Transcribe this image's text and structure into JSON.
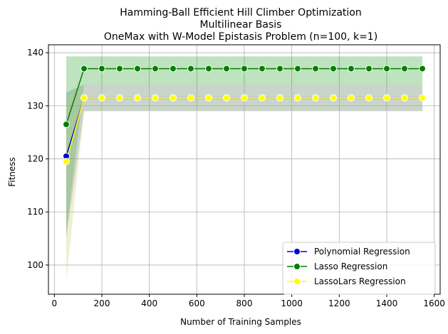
{
  "chart_data": {
    "type": "line",
    "title": [
      "Hamming-Ball Efficient Hill Climber Optimization",
      "Multilinear Basis",
      "OneMax with W-Model Epistasis Problem (n=100, k=1)"
    ],
    "xlabel": "Number of Training Samples",
    "ylabel": "Fitness",
    "xlim": [
      -25,
      1625
    ],
    "ylim": [
      94.5,
      141.5
    ],
    "xticks": [
      0,
      200,
      400,
      600,
      800,
      1000,
      1200,
      1400,
      1600
    ],
    "yticks": [
      100,
      110,
      120,
      130,
      140
    ],
    "grid": true,
    "legend_position": "lower-right",
    "x": [
      50,
      125,
      200,
      275,
      350,
      425,
      500,
      575,
      650,
      725,
      800,
      875,
      950,
      1025,
      1100,
      1175,
      1250,
      1325,
      1400,
      1475,
      1550
    ],
    "series": [
      {
        "name": "Polynomial Regression",
        "color": "#0000cc",
        "band_color": "#4f7fc7",
        "values": [
          120.5,
          131.5,
          131.5,
          131.5,
          131.5,
          131.5,
          131.5,
          131.5,
          131.5,
          131.5,
          131.5,
          131.5,
          131.5,
          131.5,
          131.5,
          131.5,
          131.5,
          131.5,
          131.5,
          131.5,
          131.5
        ],
        "lower": [
          105,
          129,
          129,
          129,
          129,
          129,
          129,
          129,
          129,
          129,
          129,
          129,
          129,
          129,
          129,
          129,
          129,
          129,
          129,
          129,
          129
        ],
        "upper": [
          132.5,
          134,
          134,
          134,
          134,
          134,
          134,
          134,
          134,
          134,
          134,
          134,
          134,
          134,
          134,
          134,
          134,
          134,
          134,
          134,
          134
        ]
      },
      {
        "name": "Lasso Regression",
        "color": "#008000",
        "band_color": "#2ca02c",
        "values": [
          126.5,
          137,
          137,
          137,
          137,
          137,
          137,
          137,
          137,
          137,
          137,
          137,
          137,
          137,
          137,
          137,
          137,
          137,
          137,
          137,
          137
        ],
        "lower": [
          106,
          134,
          134,
          134,
          134,
          134,
          134,
          134,
          134,
          134,
          134,
          134,
          134,
          134,
          134,
          134,
          134,
          134,
          134,
          134,
          134
        ],
        "upper": [
          139.3,
          139.3,
          139.3,
          139.3,
          139.3,
          139.3,
          139.3,
          139.3,
          139.3,
          139.3,
          139.3,
          139.3,
          139.3,
          139.3,
          139.3,
          139.3,
          139.3,
          139.3,
          139.3,
          139.3,
          139.3
        ]
      },
      {
        "name": "LassoLars Regression",
        "color": "#ffff00",
        "band_color": "#c9c970",
        "values": [
          119.5,
          131.5,
          131.5,
          131.5,
          131.5,
          131.5,
          131.5,
          131.5,
          131.5,
          131.5,
          131.5,
          131.5,
          131.5,
          131.5,
          131.5,
          131.5,
          131.5,
          131.5,
          131.5,
          131.5,
          131.5
        ],
        "lower": [
          97,
          129,
          129,
          129,
          129,
          129,
          129,
          129,
          129,
          129,
          129,
          129,
          129,
          129,
          129,
          129,
          129,
          129,
          129,
          129,
          129
        ],
        "upper": [
          131.5,
          134,
          134,
          134,
          134,
          134,
          134,
          134,
          134,
          134,
          134,
          134,
          134,
          134,
          134,
          134,
          134,
          134,
          134,
          134,
          134
        ]
      }
    ]
  }
}
